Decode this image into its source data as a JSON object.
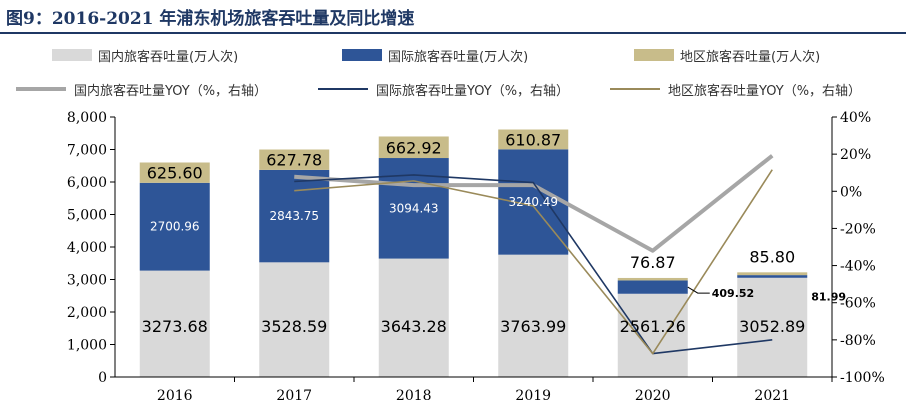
{
  "figure_title": "图9：2016-2021 年浦东机场旅客吞吐量及同比增速",
  "colors": {
    "domestic": "#d9d9d9",
    "international": "#2e5597",
    "regional": "#c8bc8a",
    "domestic_yoy": "#a6a6a6",
    "international_yoy": "#1f3864",
    "regional_yoy": "#9a8a5a",
    "title": "#1f3864"
  },
  "chart_data": {
    "type": "bar",
    "stacked": true,
    "categories": [
      "2016",
      "2017",
      "2018",
      "2019",
      "2020",
      "2021"
    ],
    "series": [
      {
        "name": "国内旅客吞吐量(万人次)",
        "kind": "bar",
        "axis": "left",
        "values": [
          3273.68,
          3528.59,
          3643.28,
          3763.99,
          2561.26,
          3052.89
        ],
        "labels": [
          "3273.68",
          "3528.59",
          "3643.28",
          "3763.99",
          "2561.26",
          "3052.89"
        ]
      },
      {
        "name": "国际旅客吞吐量(万人次)",
        "kind": "bar",
        "axis": "left",
        "values": [
          2700.96,
          2843.75,
          3094.43,
          3240.49,
          409.52,
          81.99
        ],
        "labels": [
          "2700.96",
          "2843.75",
          "3094.43",
          "3240.49",
          "409.52",
          "81.99"
        ]
      },
      {
        "name": "地区旅客吞吐量(万人次)",
        "kind": "bar",
        "axis": "left",
        "values": [
          625.6,
          627.78,
          662.92,
          610.87,
          76.87,
          85.8
        ],
        "labels": [
          "625.60",
          "627.78",
          "662.92",
          "610.87",
          "76.87",
          "85.80"
        ]
      },
      {
        "name": "国内旅客吞吐量YOY（%，右轴）",
        "kind": "line",
        "axis": "right",
        "values": [
          null,
          7.8,
          3.3,
          3.3,
          -32.0,
          19.2
        ]
      },
      {
        "name": "国际旅客吞吐量YOY（%，右轴）",
        "kind": "line",
        "axis": "right",
        "values": [
          null,
          5.3,
          8.8,
          4.7,
          -87.4,
          -80.0
        ]
      },
      {
        "name": "地区旅客吞吐量YOY（%，右轴）",
        "kind": "line",
        "axis": "right",
        "values": [
          null,
          0.3,
          5.6,
          -7.9,
          -87.4,
          11.6
        ]
      }
    ],
    "y_left": {
      "min": 0,
      "max": 8000,
      "ticks": [
        "0",
        "1,000",
        "2,000",
        "3,000",
        "4,000",
        "5,000",
        "6,000",
        "7,000",
        "8,000"
      ]
    },
    "y_right": {
      "min": -100,
      "max": 40,
      "ticks": [
        "-100%",
        "-80%",
        "-60%",
        "-40%",
        "-20%",
        "0%",
        "20%",
        "40%"
      ]
    },
    "grid": false,
    "legend_position": "top"
  }
}
